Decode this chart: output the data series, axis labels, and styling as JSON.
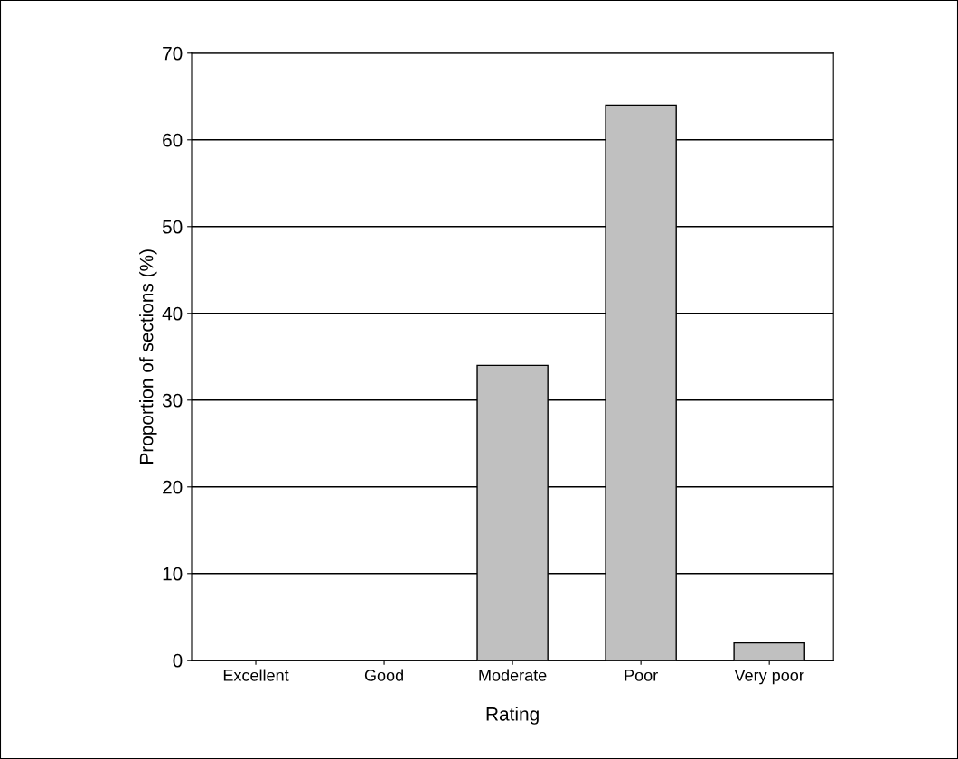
{
  "chart_data": {
    "type": "bar",
    "xlabel": "Rating",
    "ylabel": "Proportion of sections (%)",
    "categories": [
      "Excellent",
      "Good",
      "Moderate",
      "Poor",
      "Very poor"
    ],
    "values": [
      0,
      0,
      34,
      64,
      2
    ],
    "color": "#c0c0c0",
    "ylim": [
      0,
      70
    ],
    "yticks": [
      0,
      10,
      20,
      30,
      40,
      50,
      60,
      70
    ],
    "grid": "y"
  }
}
